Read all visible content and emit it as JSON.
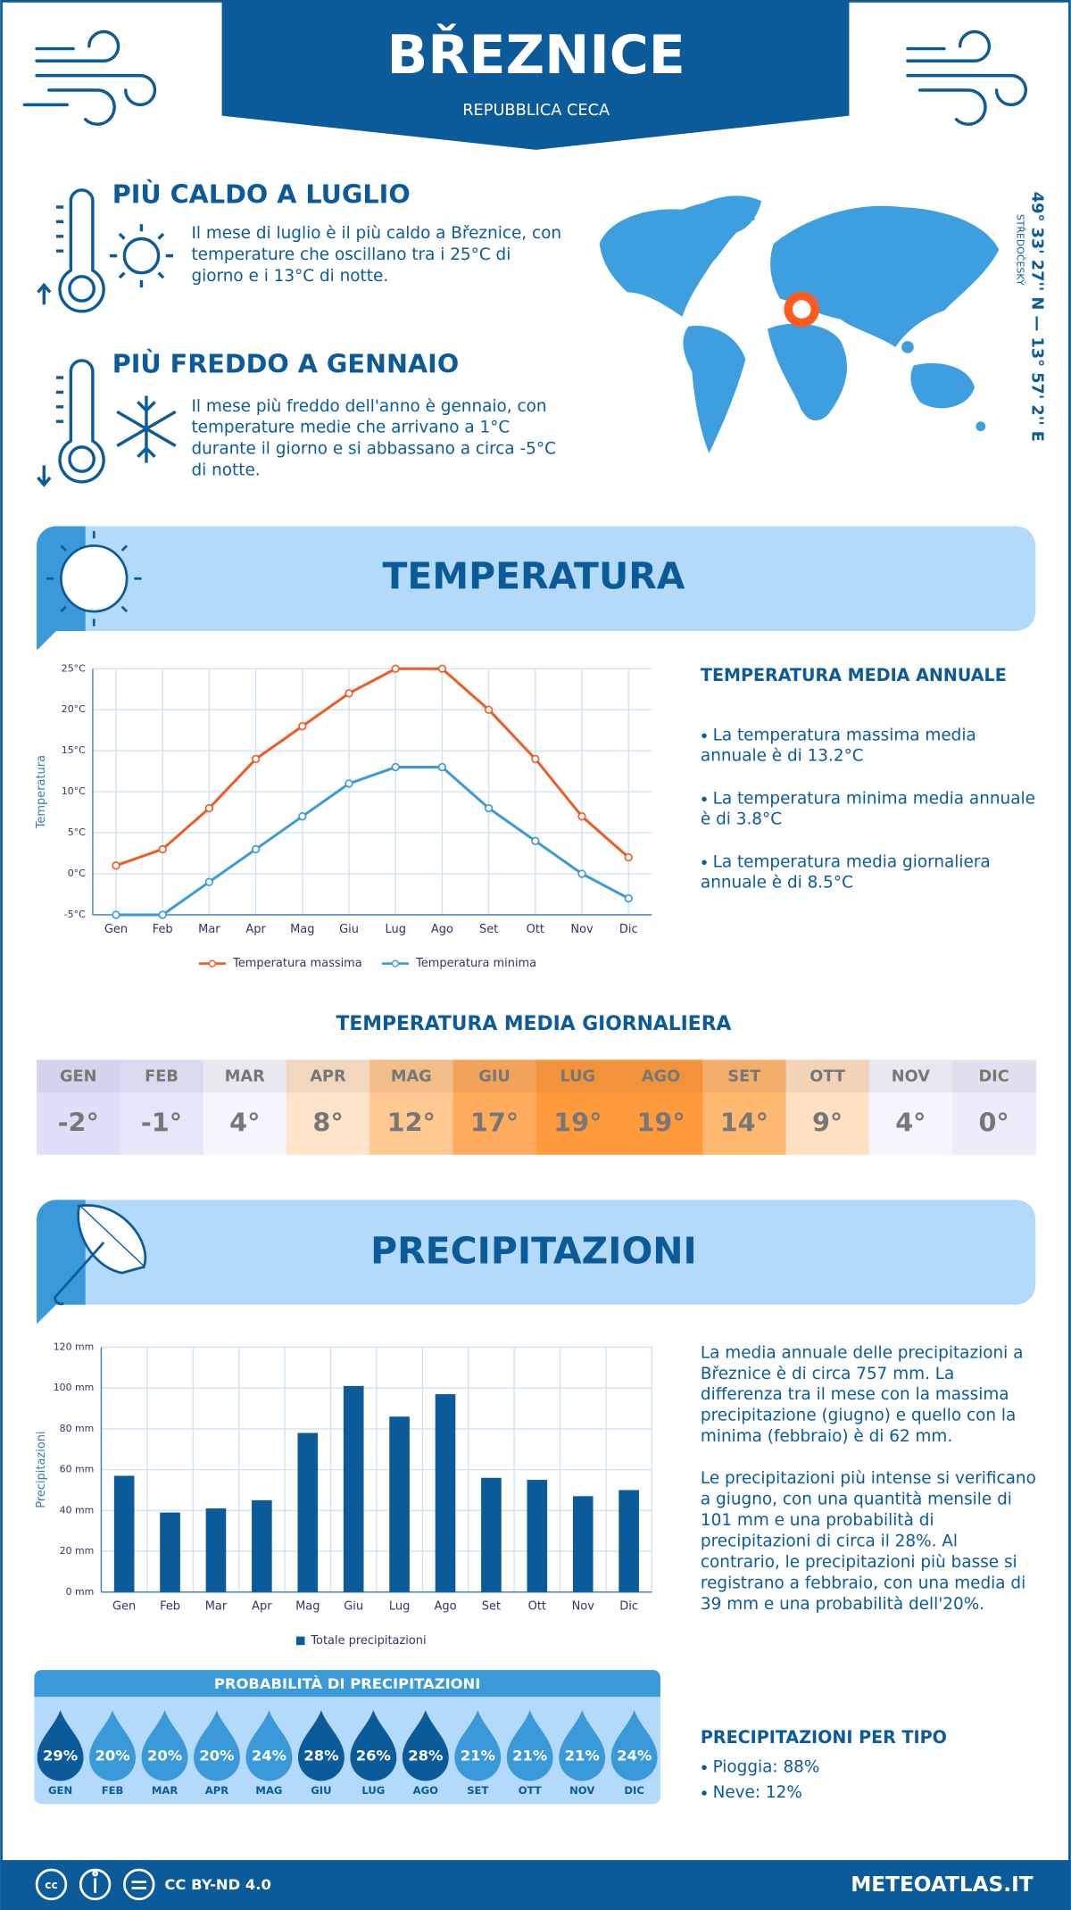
{
  "header": {
    "title": "BŘEZNICE",
    "subtitle": "REPUBBLICA CECA"
  },
  "facts": [
    {
      "title": "PIÙ CALDO A LUGLIO",
      "lines": [
        "Il mese di luglio è il più caldo a Březnice, con",
        "temperature che oscillano tra i 25°C di",
        "giorno e i 13°C di notte."
      ]
    },
    {
      "title": "PIÙ FREDDO A GENNAIO",
      "lines": [
        "Il mese più freddo dell'anno è gennaio, con",
        "temperature medie che arrivano a 1°C",
        "durante il giorno e si abbassano a circa -5°C",
        "di notte."
      ]
    }
  ],
  "location": {
    "coordinates": "49° 33' 27'' N — 13° 57' 2'' E",
    "region": "STŘEDOČESKÝ"
  },
  "temperature_section": {
    "title": "TEMPERATURA",
    "summary_title": "TEMPERATURA MEDIA ANNUALE",
    "bullets": [
      [
        "La temperatura massima media",
        "annuale è di 13.2°C"
      ],
      [
        "La temperatura minima media annuale",
        "è di 3.8°C"
      ],
      [
        "La temperatura media giornaliera",
        "annuale è di 8.5°C"
      ]
    ]
  },
  "chart_data": [
    {
      "type": "line",
      "y_label": "Temperatura",
      "categories": [
        "Gen",
        "Feb",
        "Mar",
        "Apr",
        "Mag",
        "Giu",
        "Lug",
        "Ago",
        "Set",
        "Ott",
        "Nov",
        "Dic"
      ],
      "series": [
        {
          "name": "Temperatura massima",
          "color": "#f05a24",
          "values": [
            1,
            3,
            8,
            14,
            18,
            22,
            25,
            25,
            20,
            14,
            7,
            2
          ]
        },
        {
          "name": "Temperatura minima",
          "color": "#3a9ad9",
          "values": [
            -5,
            -5,
            -1,
            3,
            7,
            11,
            13,
            13,
            8,
            4,
            0,
            -3
          ]
        }
      ],
      "ylim": [
        -5,
        25
      ],
      "yticks": [
        {
          "value": -5,
          "label": "-5°C"
        },
        {
          "value": 0,
          "label": "0°C"
        },
        {
          "value": 5,
          "label": "5°C"
        },
        {
          "value": 10,
          "label": "10°C"
        },
        {
          "value": 15,
          "label": "15°C"
        },
        {
          "value": 20,
          "label": "20°C"
        },
        {
          "value": 25,
          "label": "25°C"
        }
      ],
      "grid": true
    },
    {
      "type": "bar",
      "y_label": "Precipitazioni",
      "categories": [
        "Gen",
        "Feb",
        "Mar",
        "Apr",
        "Mag",
        "Giu",
        "Lug",
        "Ago",
        "Set",
        "Ott",
        "Nov",
        "Dic"
      ],
      "series": [
        {
          "name": "Totale precipitazioni",
          "color": "#0b5a9a",
          "values": [
            57,
            39,
            41,
            45,
            78,
            101,
            86,
            97,
            56,
            55,
            47,
            50
          ]
        }
      ],
      "ylim": [
        0,
        120
      ],
      "yticks": [
        {
          "value": 0,
          "label": "0 mm"
        },
        {
          "value": 20,
          "label": "20 mm"
        },
        {
          "value": 40,
          "label": "40 mm"
        },
        {
          "value": 60,
          "label": "60 mm"
        },
        {
          "value": 80,
          "label": "80 mm"
        },
        {
          "value": 100,
          "label": "100 mm"
        },
        {
          "value": 120,
          "label": "120 mm"
        }
      ],
      "grid": true
    }
  ],
  "daily": {
    "title": "TEMPERATURA MEDIA GIORNALIERA",
    "months": [
      "GEN",
      "FEB",
      "MAR",
      "APR",
      "MAG",
      "GIU",
      "LUG",
      "AGO",
      "SET",
      "OTT",
      "NOV",
      "DIC"
    ],
    "values": [
      -2,
      -1,
      4,
      8,
      12,
      17,
      19,
      19,
      14,
      9,
      4,
      0
    ],
    "value_labels": [
      "-2°",
      "-1°",
      "4°",
      "8°",
      "12°",
      "17°",
      "19°",
      "19°",
      "14°",
      "9°",
      "4°",
      "0°"
    ],
    "colors": [
      "#dfdffa",
      "#e6e6fb",
      "#f5f5fd",
      "#fee3c9",
      "#ffc891",
      "#ffab5e",
      "#ff9b3d",
      "#ff9b3d",
      "#ffb870",
      "#fee0c2",
      "#f5f5fd",
      "#ececfb"
    ]
  },
  "precip_section": {
    "title": "PRECIPITAZIONI",
    "paragraphs": [
      [
        "La media annuale delle precipitazioni a",
        "Březnice è di circa 757 mm. La",
        "differenza tra il mese con la massima",
        "precipitazione (giugno) e quello con la",
        "minima (febbraio) è di 62 mm."
      ],
      [
        "Le precipitazioni più intense si verificano",
        "a giugno, con una quantità mensile di",
        "101 mm e una probabilità di",
        "precipitazioni di circa il 28%. Al",
        "contrario, le precipitazioni più basse si",
        "registrano a febbraio, con una media di",
        "39 mm e una probabilità dell'20%."
      ]
    ]
  },
  "probability": {
    "title": "PROBABILITÀ DI PRECIPITAZIONI",
    "months": [
      "GEN",
      "FEB",
      "MAR",
      "APR",
      "MAG",
      "GIU",
      "LUG",
      "AGO",
      "SET",
      "OTT",
      "NOV",
      "DIC"
    ],
    "values": [
      29,
      20,
      20,
      20,
      24,
      28,
      26,
      28,
      21,
      21,
      21,
      24
    ],
    "value_labels": [
      "29%",
      "20%",
      "20%",
      "20%",
      "24%",
      "28%",
      "26%",
      "28%",
      "21%",
      "21%",
      "21%",
      "24%"
    ],
    "colors": [
      "#0b5a9a",
      "#3a9ad9",
      "#3a9ad9",
      "#3a9ad9",
      "#3a9ad9",
      "#0b5a9a",
      "#0b5a9a",
      "#0b5a9a",
      "#3a9ad9",
      "#3a9ad9",
      "#3a9ad9",
      "#3a9ad9"
    ]
  },
  "types": {
    "title": "PRECIPITAZIONI PER TIPO",
    "items": [
      "Pioggia: 88%",
      "Neve: 12%"
    ]
  },
  "footer": {
    "license": "CC BY-ND 4.0",
    "site": "METEOATLAS.IT"
  }
}
